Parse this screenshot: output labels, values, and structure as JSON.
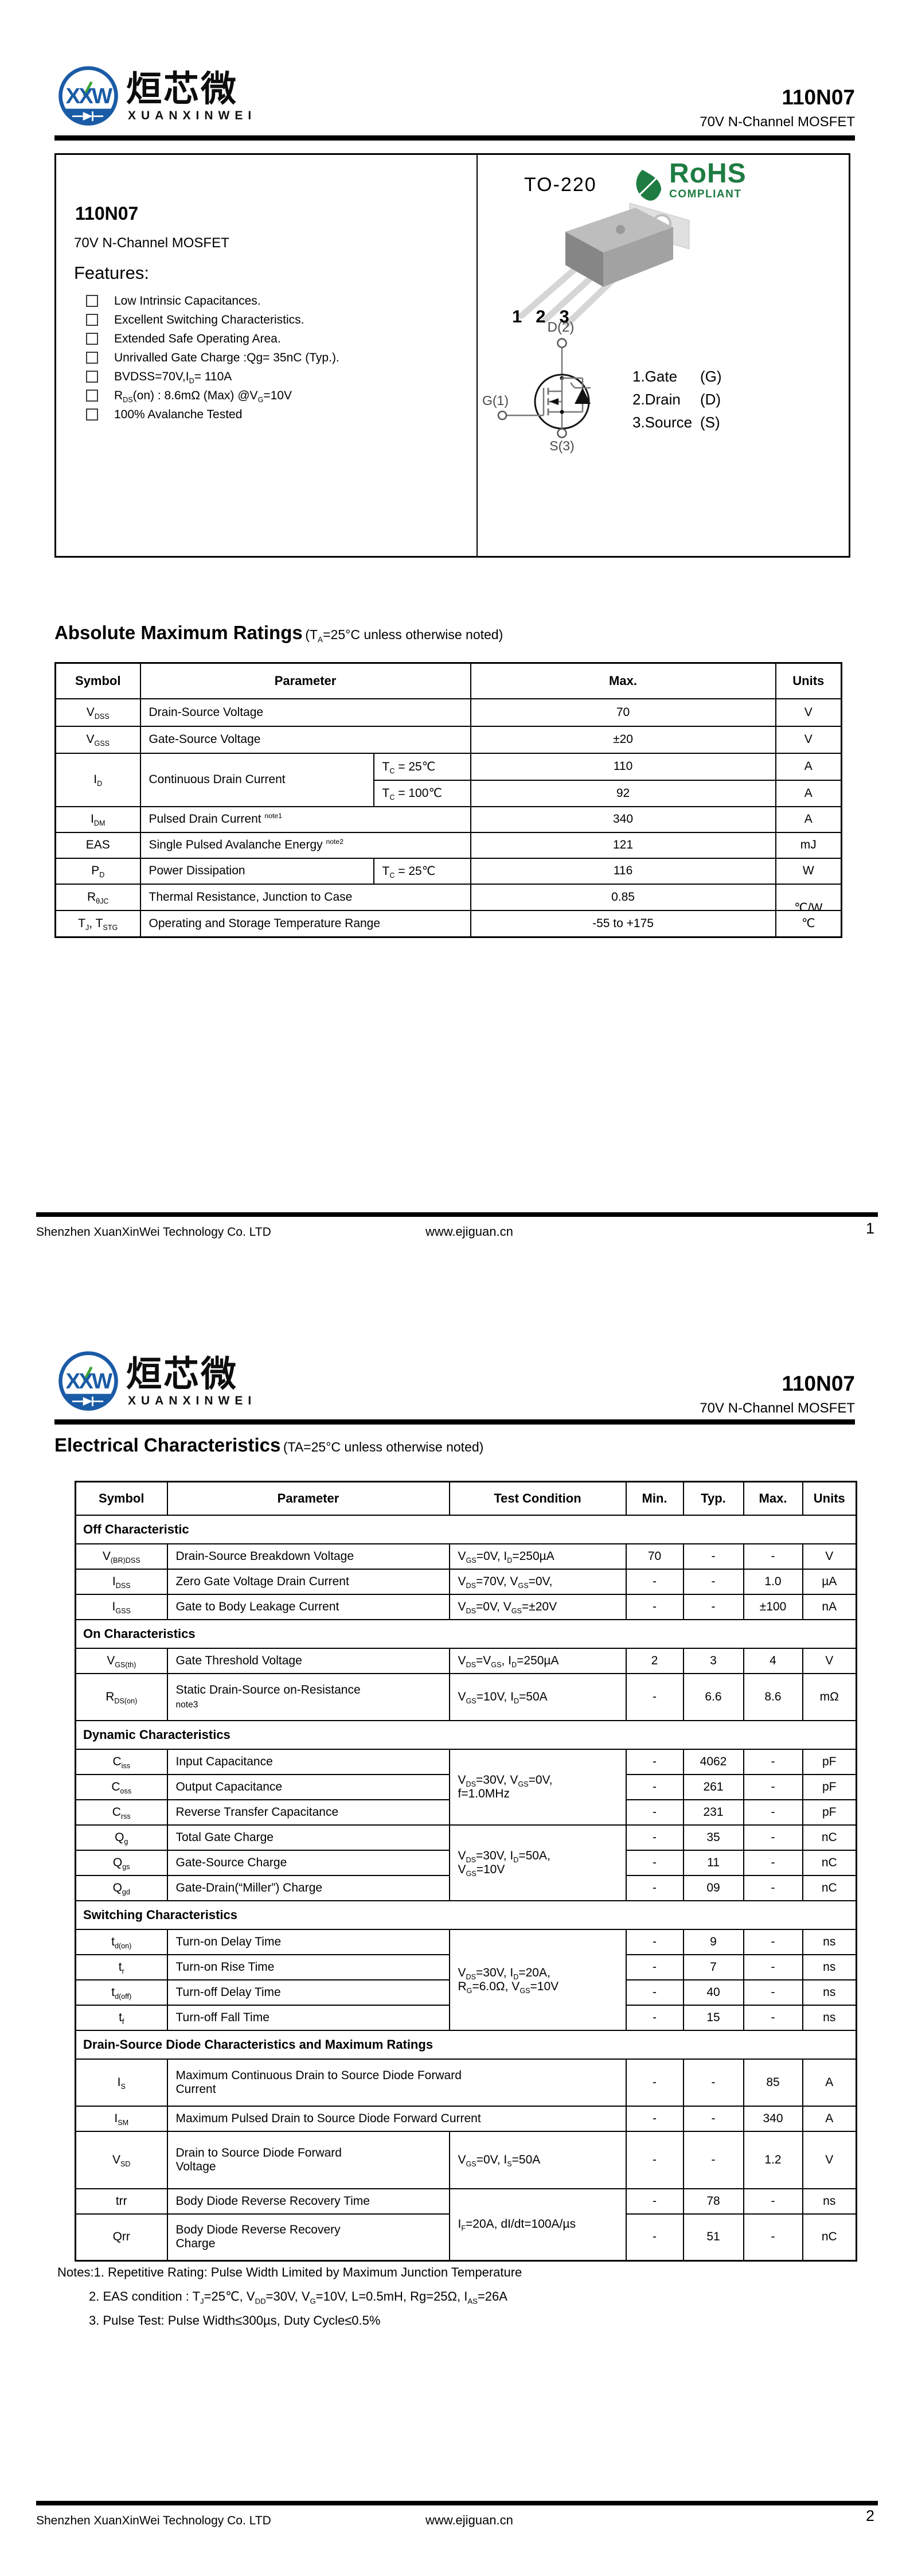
{
  "colors": {
    "brand_blue": "#1a5ba6",
    "brand_green": "#3fa535",
    "rohs_green": "#1e7c42",
    "rule_black": "#000000"
  },
  "brand": {
    "logo_initials": "XXW",
    "name_cn": "烜芯微",
    "name_en": "XUANXINWEI"
  },
  "part": {
    "number": "110N07",
    "subtitle": "70V N-Channel MOSFET"
  },
  "page1": {
    "overview": {
      "title": "110N07",
      "subtitle": "70V N-Channel MOSFET",
      "features_heading": "Features:",
      "features": [
        "Low Intrinsic Capacitances.",
        "Excellent Switching Characteristics.",
        "Extended Safe Operating Area.",
        "Unrivalled Gate Charge :Qg= 35nC (Typ.).",
        "BVDSS=70V,I<sub>D</sub>= 110A",
        "R<sub>DS</sub>(on) : 8.6mΩ (Max) @V<sub>G</sub>=10V",
        "100% Avalanche Tested"
      ],
      "package_name": "TO-220",
      "rohs": {
        "line1": "RoHS",
        "line2": "COMPLIANT"
      },
      "pin_numbers": [
        "1",
        "2",
        "3"
      ],
      "schematic": {
        "drain": "D(2)",
        "gate": "G(1)",
        "source": "S(3)"
      },
      "pin_legend": [
        {
          "name": "1.Gate",
          "sym": "(G)"
        },
        {
          "name": "2.Drain",
          "sym": "(D)"
        },
        {
          "name": "3.Source",
          "sym": "(S)"
        }
      ]
    },
    "abs_max": {
      "heading": "Absolute Maximum Ratings",
      "heading_note": "(T<sub>A</sub>=25°C unless otherwise noted)",
      "col_headers": [
        "Symbol",
        "Parameter",
        "Max.",
        "Units"
      ],
      "rows": {
        "vdss": {
          "sym": "V<sub>DSS</sub>",
          "param": "Drain-Source Voltage",
          "max": "70",
          "unit": "V"
        },
        "vgss": {
          "sym": "V<sub>GSS</sub>",
          "param": "Gate-Source Voltage",
          "max": "±20",
          "unit": "V"
        },
        "id": {
          "sym": "I<sub>D</sub>",
          "param": "Continuous Drain Current",
          "cond_25": "T<sub>C</sub> = 25℃",
          "max_25": "110",
          "unit_25": "A",
          "cond_100": "T<sub>C</sub> = 100℃",
          "max_100": "92",
          "unit_100": "A"
        },
        "idm": {
          "sym": "I<sub>DM</sub>",
          "param": "Pulsed Drain Current <sup>note1</sup>",
          "max": "340",
          "unit": "A"
        },
        "eas": {
          "sym": "EAS",
          "param": "Single Pulsed Avalanche Energy <sup>note2</sup>",
          "max": "121",
          "unit": "mJ"
        },
        "pd": {
          "sym": "P<sub>D</sub>",
          "param": "Power Dissipation",
          "cond": "T<sub>C</sub> = 25℃",
          "max": "116",
          "unit": "W"
        },
        "rthjc": {
          "sym": "R<sub>θJC</sub>",
          "param": "Thermal Resistance, Junction to Case",
          "max": "0.85",
          "unit": "℃/W"
        },
        "tj": {
          "sym": "T<sub>J</sub>, T<sub>STG</sub>",
          "param": "Operating and Storage Temperature Range",
          "max": "-55 to +175",
          "unit": "℃"
        }
      }
    },
    "footer": {
      "company": "Shenzhen XuanXinWei Technology Co. LTD",
      "website": "www.ejiguan.cn",
      "page": "1"
    }
  },
  "page2": {
    "heading": "Electrical Characteristics",
    "heading_note": "(TA=25°C unless otherwise noted)",
    "col_headers": [
      "Symbol",
      "Parameter",
      "Test Condition",
      "Min.",
      "Typ.",
      "Max.",
      "Units"
    ],
    "sections": {
      "off": "Off Characteristic",
      "on": "On Characteristics",
      "dynamic": "Dynamic Characteristics",
      "switching": "Switching Characteristics",
      "diode": "Drain-Source Diode Characteristics and Maximum Ratings"
    },
    "shared_conditions": {
      "cap": "V<sub>DS</sub>=30V, V<sub>GS</sub>=0V,<br>f=1.0MHz",
      "charge": "V<sub>DS</sub>=30V, I<sub>D</sub>=50A,<br>V<sub>GS</sub>=10V",
      "switching": "V<sub>DS</sub>=30V, I<sub>D</sub>=20A,<br>R<sub>G</sub>=6.0Ω, V<sub>GS</sub>=10V",
      "recovery": "I<sub>F</sub>=20A, dI/dt=100A/µs"
    },
    "rows": {
      "vbrdss": {
        "sym": "V<sub>(BR)DSS</sub>",
        "param": "Drain-Source Breakdown Voltage",
        "cond": "V<sub>GS</sub>=0V, I<sub>D</sub>=250µA",
        "min": "70",
        "typ": "-",
        "max": "-",
        "unit": "V"
      },
      "idss": {
        "sym": "I<sub>DSS</sub>",
        "param": "Zero Gate Voltage Drain Current",
        "cond": "V<sub>DS</sub>=70V, V<sub>GS</sub>=0V,",
        "min": "-",
        "typ": "-",
        "max": "1.0",
        "unit": "µA"
      },
      "igss": {
        "sym": "I<sub>GSS</sub>",
        "param": "Gate to Body Leakage Current",
        "cond": "V<sub>DS</sub>=0V, V<sub>GS</sub>=±20V",
        "min": "-",
        "typ": "-",
        "max": "±100",
        "unit": "nA"
      },
      "vgsth": {
        "sym": "V<sub>GS(th)</sub>",
        "param": "Gate Threshold Voltage",
        "cond": "V<sub>DS</sub>=V<sub>GS</sub>, I<sub>D</sub>=250µA",
        "min": "2",
        "typ": "3",
        "max": "4",
        "unit": "V"
      },
      "rdson": {
        "sym": "R<sub>DS(on)</sub>",
        "param": "Static Drain-Source on-Resistance<br><small>note3</small>",
        "cond": "V<sub>GS</sub>=10V, I<sub>D</sub>=50A",
        "min": "-",
        "typ": "6.6",
        "max": "8.6",
        "unit": "mΩ"
      },
      "ciss": {
        "sym": "C<sub>iss</sub>",
        "param": "Input Capacitance",
        "min": "-",
        "typ": "4062",
        "max": "-",
        "unit": "pF"
      },
      "coss": {
        "sym": "C<sub>oss</sub>",
        "param": "Output Capacitance",
        "min": "-",
        "typ": "261",
        "max": "-",
        "unit": "pF"
      },
      "crss": {
        "sym": "C<sub>rss</sub>",
        "param": "Reverse Transfer Capacitance",
        "min": "-",
        "typ": "231",
        "max": "-",
        "unit": "pF"
      },
      "qg": {
        "sym": "Q<sub>g</sub>",
        "param": "Total Gate Charge",
        "min": "-",
        "typ": "35",
        "max": "-",
        "unit": "nC"
      },
      "qgs": {
        "sym": "Q<sub>gs</sub>",
        "param": "Gate-Source Charge",
        "min": "-",
        "typ": "11",
        "max": "-",
        "unit": "nC"
      },
      "qgd": {
        "sym": "Q<sub>gd</sub>",
        "param": "Gate-Drain(“Miller”) Charge",
        "min": "-",
        "typ": "09",
        "max": "-",
        "unit": "nC"
      },
      "tdon": {
        "sym": "t<sub>d(on)</sub>",
        "param": "Turn-on Delay Time",
        "min": "-",
        "typ": "9",
        "max": "-",
        "unit": "ns"
      },
      "tr": {
        "sym": "t<sub>r</sub>",
        "param": "Turn-on Rise Time",
        "min": "-",
        "typ": "7",
        "max": "-",
        "unit": "ns"
      },
      "tdoff": {
        "sym": "t<sub>d(off)</sub>",
        "param": "Turn-off Delay Time",
        "min": "-",
        "typ": "40",
        "max": "-",
        "unit": "ns"
      },
      "tf": {
        "sym": "t<sub>f</sub>",
        "param": "Turn-off Fall Time",
        "min": "-",
        "typ": "15",
        "max": "-",
        "unit": "ns"
      },
      "is": {
        "sym": "I<sub>S</sub>",
        "param": "Maximum Continuous Drain to Source Diode Forward<br>Current",
        "min": "-",
        "typ": "-",
        "max": "85",
        "unit": "A"
      },
      "ism": {
        "sym": "I<sub>SM</sub>",
        "param": "Maximum Pulsed Drain to Source Diode Forward Current",
        "min": "-",
        "typ": "-",
        "max": "340",
        "unit": "A"
      },
      "vsd": {
        "sym": "V<sub>SD</sub>",
        "param": "Drain to Source Diode Forward<br>Voltage",
        "cond": "V<sub>GS</sub>=0V, I<sub>S</sub>=50A",
        "min": "-",
        "typ": "-",
        "max": "1.2",
        "unit": "V"
      },
      "trr": {
        "sym": "trr",
        "param": "Body Diode Reverse Recovery Time",
        "min": "-",
        "typ": "78",
        "max": "-",
        "unit": "ns"
      },
      "qrr": {
        "sym": "Qrr",
        "param": "Body Diode Reverse Recovery<br>Charge",
        "min": "-",
        "typ": "51",
        "max": "-",
        "unit": "nC"
      }
    },
    "notes": {
      "line1": "Notes:1. Repetitive Rating: Pulse Width Limited by Maximum Junction Temperature",
      "line2": "2. EAS condition : T<sub>J</sub>=25℃, V<sub>DD</sub>=30V, V<sub>G</sub>=10V, L=0.5mH, Rg=25Ω, I<sub>AS</sub>=26A",
      "line3": "3. Pulse Test: Pulse Width≤300µs, Duty Cycle≤0.5%"
    },
    "footer": {
      "company": "Shenzhen XuanXinWei Technology Co. LTD",
      "website": "www.ejiguan.cn",
      "page": "2"
    }
  }
}
